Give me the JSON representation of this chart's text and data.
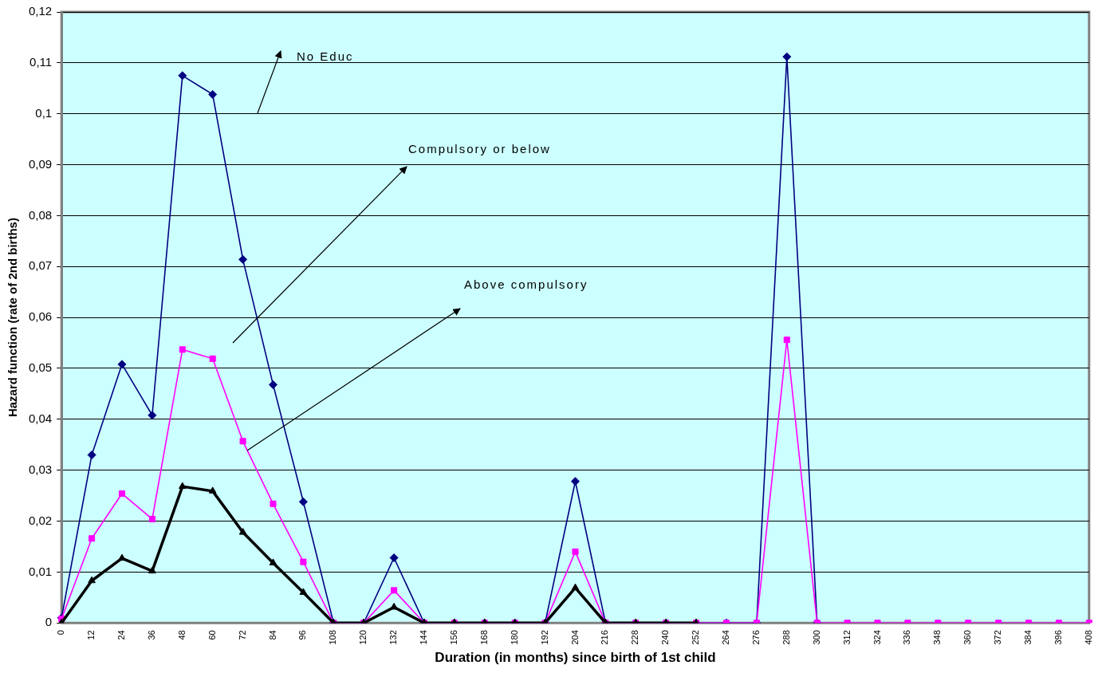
{
  "chart_data": {
    "type": "line",
    "xlabel": "Duration (in months) since birth of 1st child",
    "ylabel": "Hazard function (rate of 2nd births)",
    "categories": [
      "0",
      "12",
      "24",
      "36",
      "48",
      "60",
      "72",
      "84",
      "96",
      "108",
      "120",
      "132",
      "144",
      "156",
      "168",
      "180",
      "192",
      "204",
      "216",
      "228",
      "240",
      "252",
      "264",
      "276",
      "288",
      "300",
      "312",
      "324",
      "336",
      "348",
      "360",
      "372",
      "384",
      "396",
      "408"
    ],
    "series": [
      {
        "color": "#000080",
        "marker": "diamond",
        "values": [
          0.001,
          0.033,
          0.0508,
          0.0408,
          0.1075,
          0.1038,
          0.0714,
          0.0468,
          0.0238,
          0,
          0,
          0.0128,
          0,
          0,
          0,
          0,
          0,
          0.0278,
          0,
          0,
          0,
          0,
          0,
          0,
          0.1112,
          0,
          null,
          null,
          null,
          null,
          null,
          null,
          null,
          null,
          null
        ]
      },
      {
        "color": "#ff00ff",
        "marker": "square",
        "values": [
          0.0008,
          0.0166,
          0.0254,
          0.0204,
          0.0537,
          0.0519,
          0.0357,
          0.0234,
          0.012,
          0,
          0,
          0.0064,
          0,
          0,
          0,
          0,
          0,
          0.014,
          0,
          0,
          0,
          0,
          0,
          0,
          0.0556,
          0,
          0,
          0,
          0,
          0,
          0,
          0,
          0,
          0,
          0
        ]
      },
      {
        "color": "#000000",
        "marker": "triangle",
        "values": [
          0,
          0.0083,
          0.0127,
          0.0102,
          0.0268,
          0.0259,
          0.0178,
          0.0118,
          0.006,
          0,
          0,
          0.0031,
          0,
          0,
          0,
          0,
          0,
          0.0069,
          0,
          0,
          0,
          0,
          null,
          null,
          null,
          null,
          null,
          null,
          null,
          null,
          null,
          null,
          null,
          null,
          null
        ]
      }
    ],
    "annotations": [
      "No Educ",
      "Compulsory or below",
      "Above compulsory"
    ],
    "ylim": [
      0,
      0.12
    ],
    "yticks": [
      0,
      {
        "value": 0.01,
        "label": "0,01"
      },
      {
        "value": 0.02,
        "label": "0,02"
      },
      {
        "value": 0.03,
        "label": "0,03"
      },
      {
        "value": 0.04,
        "label": "0,04"
      },
      {
        "value": 0.05,
        "label": "0,05"
      },
      {
        "value": 0.06,
        "label": "0,06"
      },
      {
        "value": 0.07,
        "label": "0,07"
      },
      {
        "value": 0.08,
        "label": "0,08"
      },
      {
        "value": 0.09,
        "label": "0,09"
      },
      {
        "value": 0.1,
        "label": "0,1"
      },
      {
        "value": 0.11,
        "label": "0,11"
      },
      {
        "value": 0.12,
        "label": "0,12"
      }
    ],
    "grid": "y",
    "legend": false
  }
}
